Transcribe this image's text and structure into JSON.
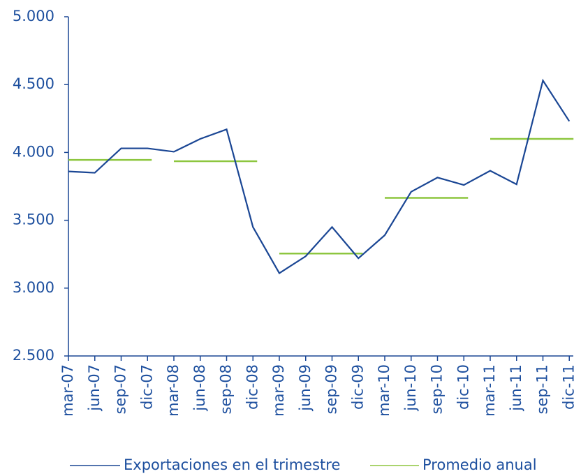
{
  "chart_data": {
    "type": "line",
    "categories": [
      "mar-07",
      "jun-07",
      "sep-07",
      "dic-07",
      "mar-08",
      "jun-08",
      "sep-08",
      "dic-08",
      "mar-09",
      "jun-09",
      "sep-09",
      "dic-09",
      "mar-10",
      "jun-10",
      "sep-10",
      "dic-10",
      "mar-11",
      "jun-11",
      "sep-11",
      "dic-11"
    ],
    "series": [
      {
        "name": "Exportaciones en el trimestre",
        "color": "#1a4694",
        "values": [
          3860,
          3850,
          4030,
          4030,
          4005,
          4100,
          4170,
          3450,
          3110,
          3235,
          3450,
          3220,
          3390,
          3710,
          3815,
          3760,
          3865,
          3765,
          4530,
          4230
        ]
      },
      {
        "name": "Promedio anual",
        "color": "#8dc63f",
        "values": [
          3945,
          3945,
          3945,
          3945,
          3935,
          3935,
          3935,
          3935,
          3255,
          3255,
          3255,
          3255,
          3665,
          3665,
          3665,
          3665,
          4100,
          4100,
          4100,
          4100
        ]
      }
    ],
    "ylim": [
      2500,
      5000
    ],
    "yticks": [
      {
        "value": 2500,
        "label": "2.500"
      },
      {
        "value": 3000,
        "label": "3.000"
      },
      {
        "value": 3500,
        "label": "3.500"
      },
      {
        "value": 4000,
        "label": "4.000"
      },
      {
        "value": 4500,
        "label": "4.500"
      },
      {
        "value": 5000,
        "label": "5.000"
      }
    ],
    "grid": false
  }
}
